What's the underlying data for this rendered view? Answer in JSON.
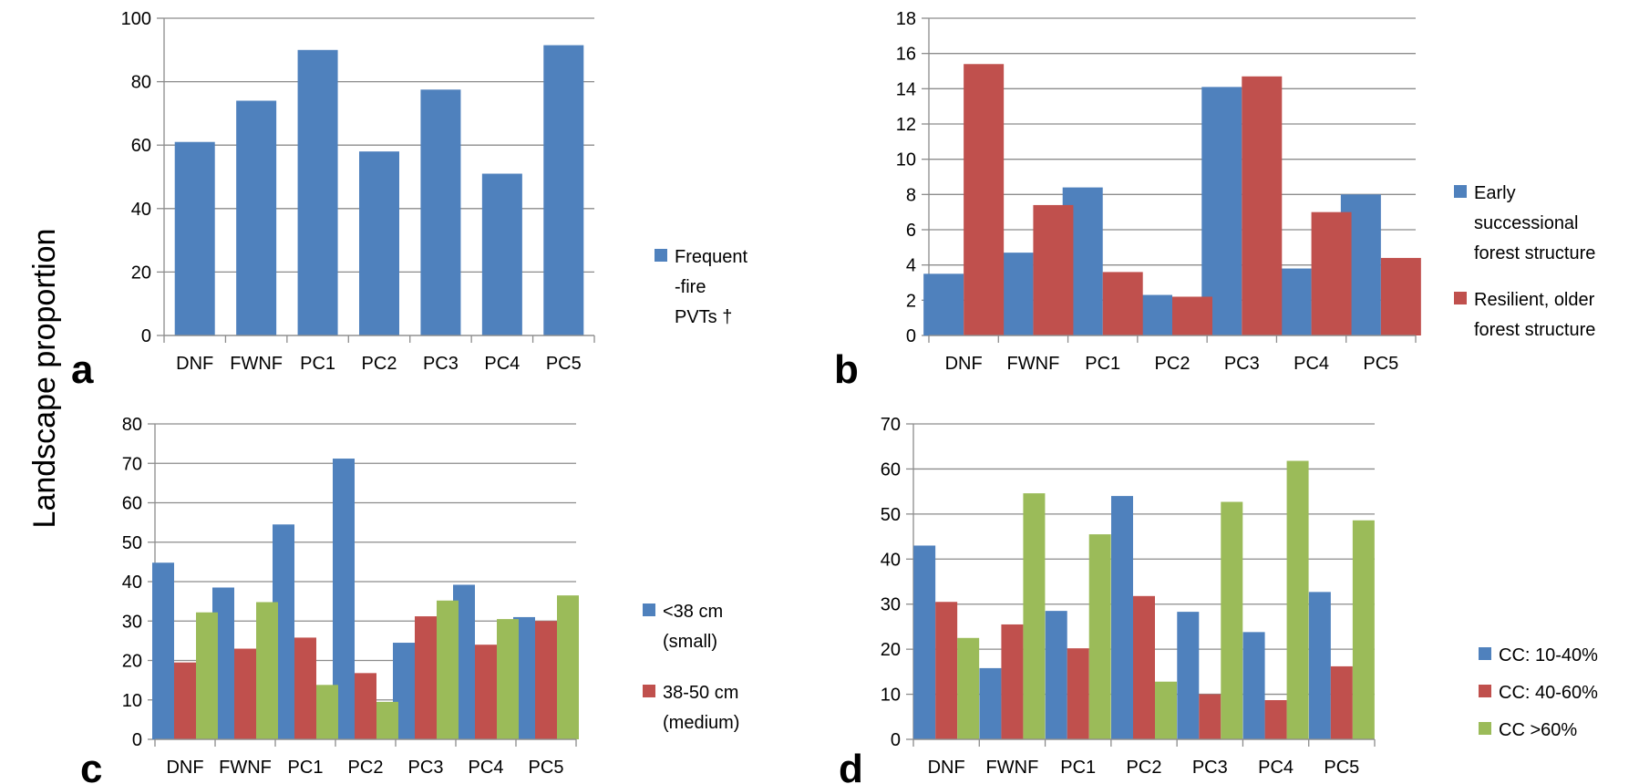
{
  "figure": {
    "ylabel": "Landscape proportion"
  },
  "chart_data": [
    {
      "panel": "a",
      "type": "bar",
      "categories": [
        "DNF",
        "FWNF",
        "PC1",
        "PC2",
        "PC3",
        "PC4",
        "PC5"
      ],
      "ylim": [
        0,
        100
      ],
      "yticks": [
        0,
        20,
        40,
        60,
        80,
        100
      ],
      "grid": true,
      "legend_position": "right",
      "series": [
        {
          "name": "Frequent -fire PVTs †",
          "legend_lines": [
            "Frequent",
            "-fire",
            "PVTs †"
          ],
          "color": "#4f81bd",
          "values": [
            61,
            74,
            90,
            58,
            77.5,
            51,
            91.5
          ]
        }
      ]
    },
    {
      "panel": "b",
      "type": "bar",
      "categories": [
        "DNF",
        "FWNF",
        "PC1",
        "PC2",
        "PC3",
        "PC4",
        "PC5"
      ],
      "ylim": [
        0,
        18
      ],
      "yticks": [
        0,
        2,
        4,
        6,
        8,
        10,
        12,
        14,
        16,
        18
      ],
      "grid": true,
      "legend_position": "right",
      "series": [
        {
          "name": "Early successional forest structure",
          "legend_lines": [
            "Early",
            "successional",
            "forest structure"
          ],
          "color": "#4f81bd",
          "values": [
            3.5,
            4.7,
            8.4,
            2.3,
            14.1,
            3.8,
            8.0
          ]
        },
        {
          "name": "Resilient, older forest structure",
          "legend_lines": [
            "Resilient, older",
            "forest structure"
          ],
          "color": "#c0504d",
          "values": [
            15.4,
            7.4,
            3.6,
            2.2,
            14.7,
            7.0,
            4.4
          ]
        }
      ]
    },
    {
      "panel": "c",
      "type": "bar",
      "categories": [
        "DNF",
        "FWNF",
        "PC1",
        "PC2",
        "PC3",
        "PC4",
        "PC5"
      ],
      "ylim": [
        0,
        80
      ],
      "yticks": [
        0,
        10,
        20,
        30,
        40,
        50,
        60,
        70,
        80
      ],
      "grid": true,
      "legend_position": "right",
      "series": [
        {
          "name": "<38 cm (small)",
          "legend_lines": [
            "<38 cm",
            "(small)"
          ],
          "color": "#4f81bd",
          "values": [
            44.8,
            38.5,
            54.5,
            71.2,
            24.5,
            39.2,
            31
          ]
        },
        {
          "name": "38-50 cm (medium)",
          "legend_lines": [
            "38-50 cm",
            "(medium)"
          ],
          "color": "#c0504d",
          "values": [
            19.5,
            23,
            25.8,
            16.8,
            31.2,
            24,
            30
          ]
        },
        {
          "name": "",
          "legend_lines": [],
          "color": "#9bbb59",
          "values": [
            32.2,
            34.8,
            13.8,
            9.5,
            35.2,
            30.5,
            36.5
          ]
        }
      ]
    },
    {
      "panel": "d",
      "type": "bar",
      "categories": [
        "DNF",
        "FWNF",
        "PC1",
        "PC2",
        "PC3",
        "PC4",
        "PC5"
      ],
      "ylim": [
        0,
        70
      ],
      "yticks": [
        0,
        10,
        20,
        30,
        40,
        50,
        60,
        70
      ],
      "grid": true,
      "legend_position": "right",
      "series": [
        {
          "name": "CC: 10-40%",
          "legend_lines": [
            "CC: 10-40%"
          ],
          "color": "#4f81bd",
          "values": [
            43,
            15.8,
            28.5,
            54,
            28.3,
            23.8,
            32.7
          ]
        },
        {
          "name": "CC: 40-60%",
          "legend_lines": [
            "CC: 40-60%"
          ],
          "color": "#c0504d",
          "values": [
            30.5,
            25.5,
            20.2,
            31.8,
            10,
            8.7,
            16.2
          ]
        },
        {
          "name": "CC >60%",
          "legend_lines": [
            "CC >60%"
          ],
          "color": "#9bbb59",
          "values": [
            22.5,
            54.6,
            45.5,
            12.8,
            52.7,
            61.8,
            48.6
          ]
        }
      ]
    }
  ]
}
